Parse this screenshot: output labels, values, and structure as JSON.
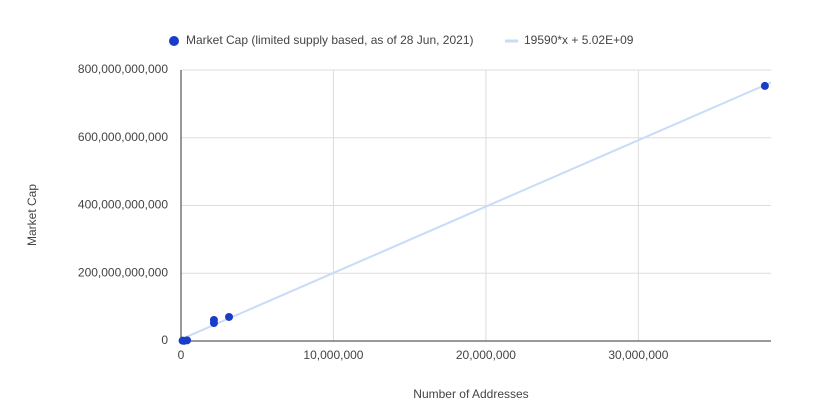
{
  "chart_data": {
    "type": "scatter",
    "x_label": "Number of Addresses",
    "y_label": "Market Cap",
    "series": [
      {
        "name": "Market Cap (limited supply based, as of 28 Jun, 2021)",
        "color": "#1a3cc8",
        "x": [
          38300000,
          3150000,
          2160000,
          2160000,
          100000,
          400000,
          200000
        ],
        "values": [
          753000000000,
          71000000000,
          62000000000,
          53000000000,
          1000000000,
          2000000000,
          500000000
        ]
      }
    ],
    "trendline": {
      "label": "19590*x + 5.02E+09",
      "slope": 19590,
      "intercept": 5020000000,
      "color": "#c9dcf7"
    },
    "xlim": [
      0,
      38700000
    ],
    "ylim": [
      0,
      800000000000
    ],
    "xticks": [
      0,
      {
        "value": 10000000,
        "label": "10,000,000"
      },
      {
        "value": 20000000,
        "label": "20,000,000"
      },
      {
        "value": 30000000,
        "label": "30,000,000"
      }
    ],
    "yticks": [
      0,
      {
        "value": 200000000000,
        "label": "200,000,000,000"
      },
      {
        "value": 400000000000,
        "label": "400,000,000,000"
      },
      {
        "value": 600000000000,
        "label": "600,000,000,000"
      },
      {
        "value": 800000000000,
        "label": "800,000,000,000"
      }
    ],
    "grid": true
  }
}
